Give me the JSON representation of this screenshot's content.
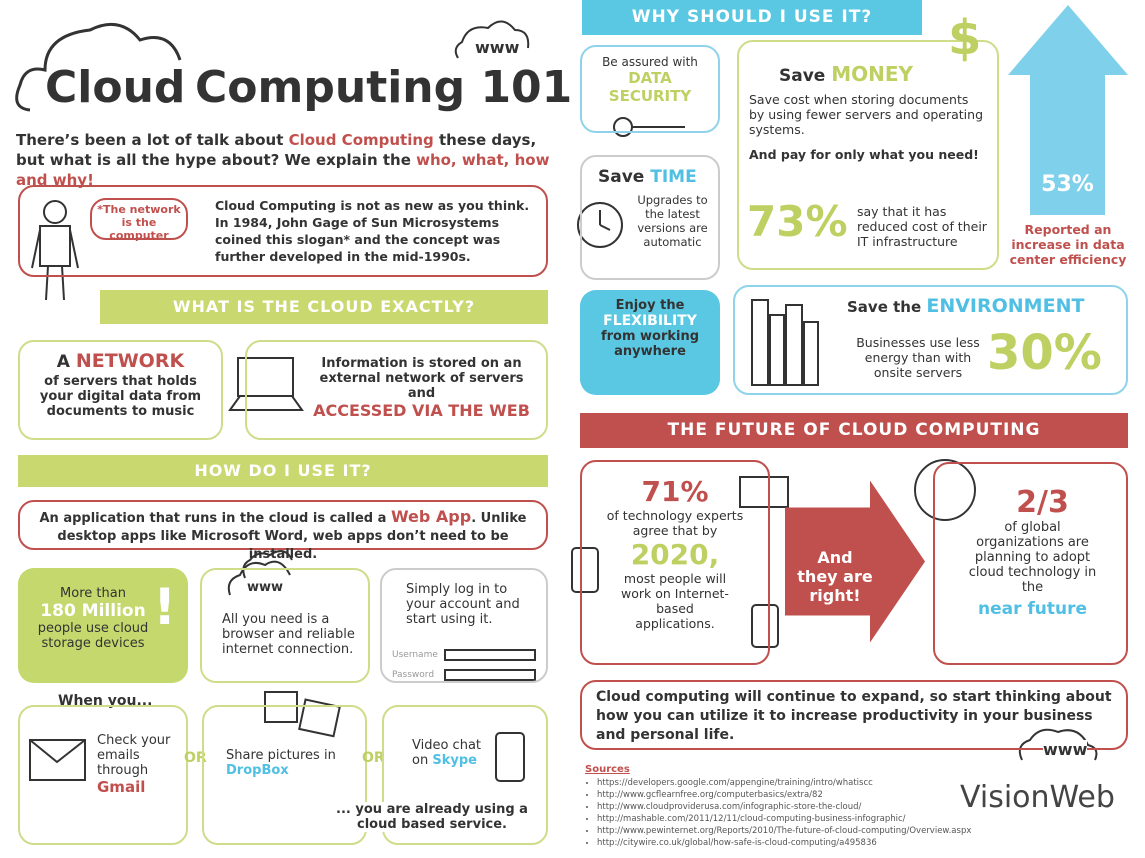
{
  "left": {
    "title": {
      "a": "Cloud",
      "b": "Computing 101",
      "www": "www"
    },
    "intro": [
      "There’s been a lot of talk about ",
      "Cloud Computing",
      " these days, but what is all the hype about? We explain the ",
      "who, what, how and why!"
    ],
    "history": {
      "speech": "*The network is the computer",
      "text": "Cloud Computing is not as new as you think. In 1984, John Gage of Sun Microsystems coined this slogan* and the concept was further developed in the mid-1990s."
    },
    "section1": "WHAT IS THE CLOUD EXACTLY?",
    "network": [
      "A ",
      "NETWORK",
      "of servers that holds your digital data from documents to music"
    ],
    "stored": [
      "Information is stored on an external network of servers and",
      "ACCESSED VIA THE WEB"
    ],
    "section2": "HOW DO I USE IT?",
    "webapp": [
      "An application that runs in the cloud is called a ",
      "Web App",
      ". Unlike desktop apps like Microsoft Word, web apps don’t need to be installed."
    ],
    "users": [
      "More than",
      "180 Million",
      "people use cloud storage devices",
      "!"
    ],
    "browser": {
      "www": "www",
      "text": "All you need is a browser and reliable internet connection."
    },
    "login": {
      "text": "Simply log in to your account and start using it.",
      "username": "Username",
      "password": "Password"
    },
    "when": "When you...",
    "email": [
      "Check your emails through",
      "Gmail"
    ],
    "or": [
      "OR",
      "OR"
    ],
    "share": [
      "Share pictures in",
      "DropBox"
    ],
    "video": [
      "Video chat on",
      "Skype"
    ],
    "already": "... you are already using a cloud based service."
  },
  "right": {
    "why": "WHY SHOULD I USE IT?",
    "security": [
      "Be assured with",
      "DATA SECURITY"
    ],
    "money": {
      "save": "Save ",
      "word": "MONEY",
      "dollar": "$",
      "text": "Save cost when storing documents by using fewer servers and operating systems.",
      "pay": "And pay for only what you need!",
      "pct": "73%",
      "pct_text": "say that it has reduced cost of their IT infrastructure"
    },
    "efficiency": {
      "pct": "53%",
      "text": "Reported an increase in data center efficiency"
    },
    "time": {
      "save": "Save ",
      "word": "TIME",
      "text": "Upgrades to the latest versions are automatic"
    },
    "flex": [
      "Enjoy the",
      "FLEXIBILITY",
      "from working anywhere"
    ],
    "env": {
      "save": "Save the ",
      "word": "ENVIRONMENT",
      "text": "Businesses use less energy than with onsite servers",
      "pct": "30%"
    },
    "future": "THE FUTURE OF CLOUD COMPUTING",
    "experts": {
      "pct": "71%",
      "text1": "of technology experts agree that by",
      "year": "2020,",
      "text2": "most people will work on Internet-based applications."
    },
    "arrow": "And they are right!",
    "orgs": {
      "frac": "2/3",
      "text": "of global organizations are planning to adopt cloud technology in the",
      "near": "near future"
    },
    "conclusion": "Cloud computing will continue to expand, so start thinking about how you can utilize it to increase productivity in your business and personal life.",
    "www": "www",
    "sources": {
      "title": "Sources",
      "items": [
        "https://developers.google.com/appengine/training/intro/whatiscc",
        "http://www.gcflearnfree.org/computerbasics/extra/82",
        "http://www.cloudproviderusa.com/infographic-store-the-cloud/",
        "http://mashable.com/2011/12/11/cloud-computing-business-infographic/",
        "http://www.pewinternet.org/Reports/2010/The-future-of-cloud-computing/Overview.aspx",
        "http://citywire.co.uk/global/how-safe-is-cloud-computing/a495836"
      ]
    },
    "logo": "VisionWeb"
  }
}
